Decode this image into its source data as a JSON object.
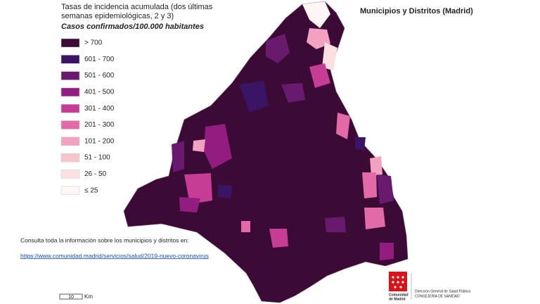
{
  "header": {
    "title_lines": [
      "Tasas de incidencia acumulada (dos últimas",
      "semanas epidemiológicas, 2 y 3)"
    ],
    "subtitle": "Casos confirmados/100.000 habitantes"
  },
  "legend": {
    "items": [
      {
        "label": "> 700",
        "color": "#3b0a35"
      },
      {
        "label": "601 - 700",
        "color": "#3a1565"
      },
      {
        "label": "501 - 600",
        "color": "#6a1a6e"
      },
      {
        "label": "401 - 500",
        "color": "#921c80"
      },
      {
        "label": "301 - 400",
        "color": "#c53d95"
      },
      {
        "label": "201 - 300",
        "color": "#e26aa8"
      },
      {
        "label": "101 - 200",
        "color": "#f2a2c0"
      },
      {
        "label": "51 - 100",
        "color": "#f7c6cc"
      },
      {
        "label": "26 - 50",
        "color": "#fbe0e1"
      },
      {
        "label": "≤ 25",
        "color": "#fdf6f4"
      }
    ]
  },
  "map_title": "Municipios y Distritos (Madrid)",
  "info": {
    "text": "Consulta toda la información sobre los municipios y distritos en:",
    "link": "https://www.comunidad.madrid/servicios/salud/2019-nuevo-coronavirus"
  },
  "scale": {
    "value": "10",
    "unit": "Km"
  },
  "logo": {
    "name_lines": [
      "Comunidad",
      "de Madrid"
    ],
    "dept_lines": [
      "Dirección General de Salud Pública",
      "CONSEJERÍA DE SANIDAD"
    ]
  }
}
